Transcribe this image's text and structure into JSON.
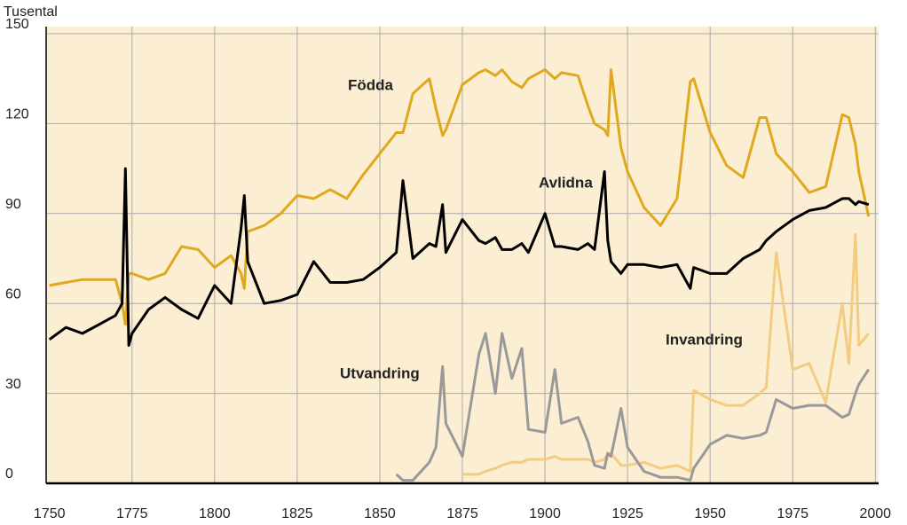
{
  "chart_data": {
    "type": "line",
    "y_axis_label": "Tusental",
    "x": [
      1750,
      1755,
      1760,
      1765,
      1770,
      1772,
      1773,
      1774,
      1775,
      1780,
      1785,
      1790,
      1795,
      1800,
      1805,
      1808,
      1809,
      1810,
      1815,
      1820,
      1825,
      1830,
      1835,
      1840,
      1845,
      1850,
      1855,
      1857,
      1860,
      1865,
      1867,
      1869,
      1870,
      1875,
      1880,
      1882,
      1885,
      1887,
      1890,
      1893,
      1895,
      1900,
      1903,
      1905,
      1910,
      1913,
      1915,
      1918,
      1919,
      1920,
      1923,
      1925,
      1930,
      1935,
      1940,
      1944,
      1945,
      1950,
      1955,
      1960,
      1965,
      1967,
      1970,
      1975,
      1980,
      1985,
      1990,
      1992,
      1994,
      1995,
      1998
    ],
    "series": [
      {
        "name": "Födda",
        "color": "#e0a81e",
        "values": [
          66,
          67,
          68,
          68,
          68,
          60,
          53,
          70,
          70,
          68,
          70,
          79,
          78,
          72,
          76,
          70,
          65,
          84,
          86,
          90,
          96,
          95,
          98,
          95,
          103,
          110,
          117,
          117,
          130,
          135,
          125,
          116,
          118,
          133,
          137,
          138,
          136,
          138,
          134,
          132,
          135,
          138,
          135,
          137,
          136,
          126,
          120,
          118,
          116,
          138,
          112,
          104,
          92,
          86,
          95,
          134,
          135,
          117,
          106,
          102,
          122,
          122,
          110,
          104,
          97,
          99,
          123,
          122,
          113,
          104,
          89
        ]
      },
      {
        "name": "Avlidna",
        "color": "#000000",
        "values": [
          48,
          52,
          50,
          53,
          56,
          60,
          105,
          46,
          50,
          58,
          62,
          58,
          55,
          66,
          60,
          85,
          96,
          74,
          60,
          61,
          63,
          74,
          67,
          67,
          68,
          72,
          77,
          101,
          75,
          80,
          79,
          93,
          77,
          88,
          81,
          80,
          82,
          78,
          78,
          80,
          77,
          90,
          79,
          79,
          78,
          80,
          78,
          104,
          81,
          74,
          70,
          73,
          73,
          72,
          73,
          65,
          72,
          70,
          70,
          75,
          78,
          81,
          84,
          88,
          91,
          92,
          95,
          95,
          93,
          94,
          93
        ]
      },
      {
        "name": "Utvandring",
        "color": "#999999",
        "values": [
          null,
          null,
          null,
          null,
          null,
          null,
          null,
          null,
          null,
          null,
          null,
          null,
          null,
          null,
          null,
          null,
          null,
          null,
          null,
          null,
          null,
          null,
          null,
          null,
          null,
          null,
          3,
          1,
          1,
          7,
          12,
          39,
          20,
          9,
          43,
          50,
          30,
          50,
          35,
          45,
          18,
          17,
          38,
          20,
          22,
          14,
          6,
          5,
          10,
          9,
          25,
          12,
          4,
          2,
          2,
          1,
          5,
          13,
          16,
          15,
          16,
          17,
          28,
          25,
          26,
          26,
          22,
          23,
          30,
          33,
          38
        ]
      },
      {
        "name": "Invandring",
        "color": "#f2cc80",
        "values": [
          null,
          null,
          null,
          null,
          null,
          null,
          null,
          null,
          null,
          null,
          null,
          null,
          null,
          null,
          null,
          null,
          null,
          null,
          null,
          null,
          null,
          null,
          null,
          null,
          null,
          null,
          null,
          null,
          null,
          null,
          null,
          null,
          null,
          3,
          3,
          4,
          5,
          6,
          7,
          7,
          8,
          8,
          9,
          8,
          8,
          8,
          7,
          8,
          10,
          10,
          6,
          6,
          7,
          5,
          6,
          4,
          31,
          28,
          26,
          26,
          30,
          32,
          77,
          38,
          40,
          27,
          60,
          40,
          83,
          46,
          50
        ]
      }
    ],
    "xlim": [
      1749,
      2001
    ],
    "xticks": [
      1750,
      1775,
      1800,
      1825,
      1850,
      1875,
      1900,
      1925,
      1950,
      1975,
      2000
    ],
    "ylim": [
      0,
      150
    ],
    "yticks": [
      0,
      30,
      60,
      90,
      120,
      150
    ],
    "grid": true
  }
}
